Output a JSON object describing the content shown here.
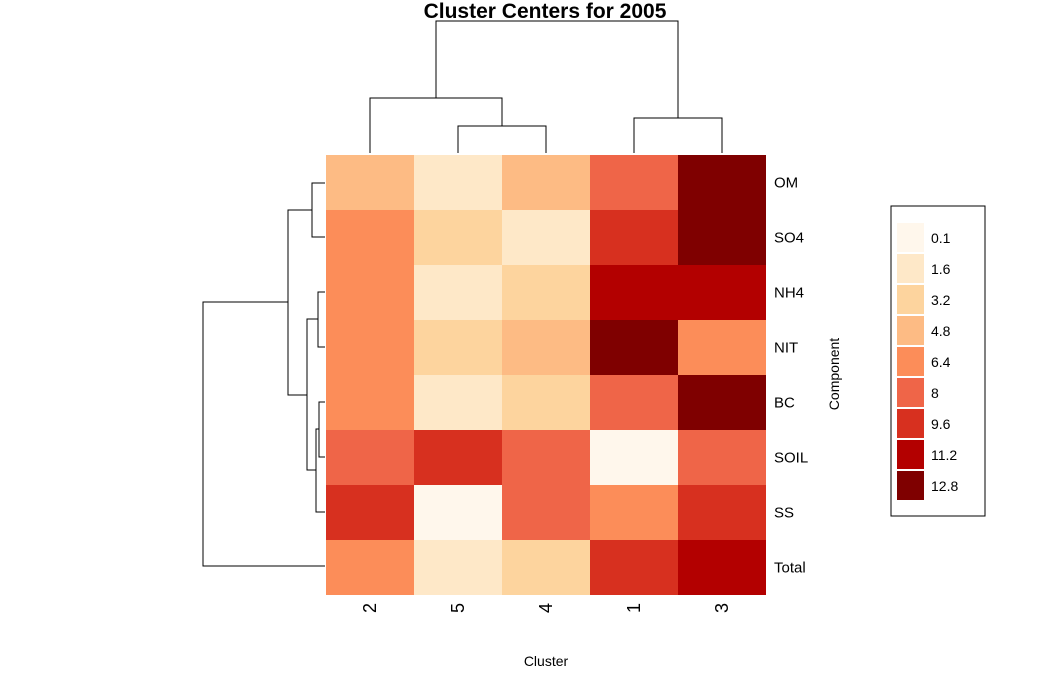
{
  "chart_data": {
    "type": "heatmap",
    "title": "Cluster Centers for 2005",
    "xlabel": "Cluster",
    "ylabel": "Component",
    "columns": [
      "2",
      "5",
      "4",
      "1",
      "3"
    ],
    "rows": [
      "OM",
      "SO4",
      "NH4",
      "NIT",
      "BC",
      "SOIL",
      "SS",
      "Total"
    ],
    "values": [
      [
        4.8,
        1.6,
        4.8,
        8.0,
        12.8
      ],
      [
        6.4,
        3.2,
        1.6,
        9.6,
        12.8
      ],
      [
        6.4,
        1.6,
        3.2,
        11.2,
        11.2
      ],
      [
        6.4,
        3.2,
        4.8,
        12.8,
        6.4
      ],
      [
        6.4,
        1.6,
        3.2,
        8.0,
        12.8
      ],
      [
        8.0,
        9.6,
        8.0,
        0.1,
        8.0
      ],
      [
        9.6,
        0.1,
        8.0,
        6.4,
        9.6
      ],
      [
        6.4,
        1.6,
        3.2,
        9.6,
        11.2
      ]
    ],
    "legend": {
      "placement": "right",
      "breaks": [
        0.1,
        1.6,
        3.2,
        4.8,
        6.4,
        8,
        9.6,
        11.2,
        12.8
      ],
      "labels": [
        "0.1",
        "1.6",
        "3.2",
        "4.8",
        "6.4",
        "8",
        "9.6",
        "11.2",
        "12.8"
      ],
      "colors": [
        "#FFF7EC",
        "#FEE8C8",
        "#FDD49E",
        "#FDBB84",
        "#FC8D59",
        "#EF6548",
        "#D7301F",
        "#B30000",
        "#7F0000"
      ]
    },
    "column_dendrogram": true,
    "row_dendrogram": true
  }
}
